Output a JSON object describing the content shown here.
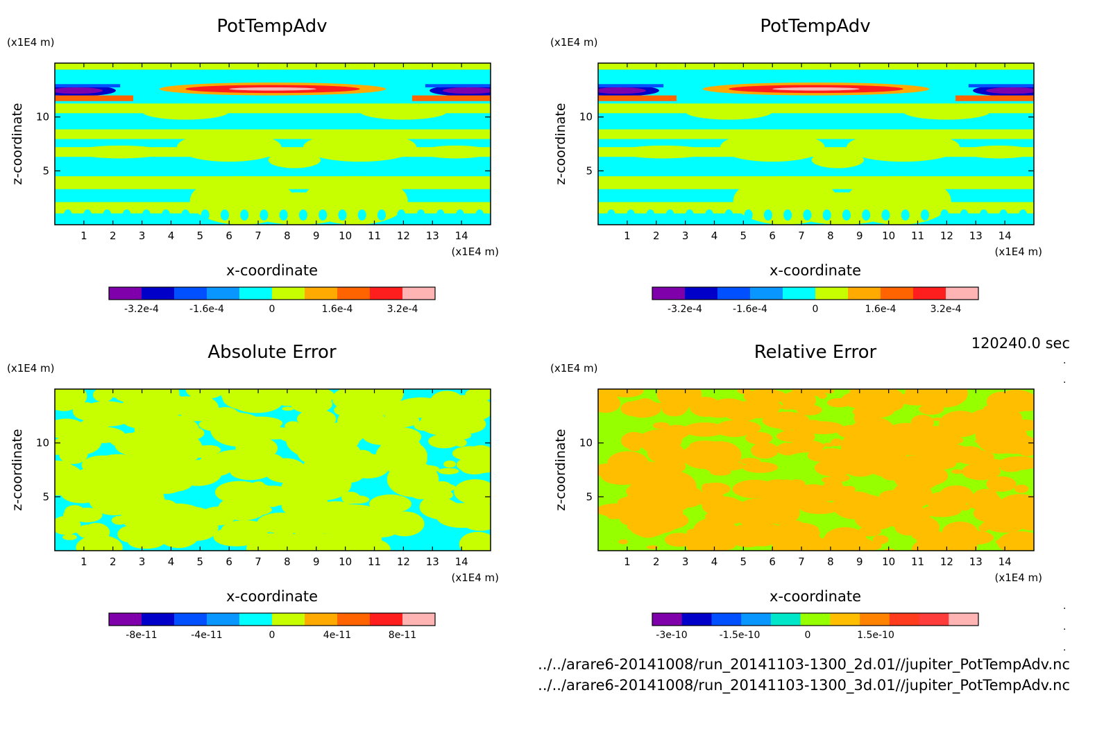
{
  "timestamp": "120240.0 sec",
  "files": [
    "../../arare6-20141008/run_20141103-1300_2d.01//jupiter_PotTempAdv.nc",
    "../../arare6-20141008/run_20141103-1300_3d.01//jupiter_PotTempAdv.nc"
  ],
  "chart_data": [
    {
      "type": "heatmap",
      "title": "PotTempAdv",
      "xlabel": "x-coordinate",
      "ylabel": "z-coordinate",
      "x_unit": "(x1E4 m)",
      "y_unit": "(x1E4 m)",
      "xlim": [
        0,
        15
      ],
      "ylim": [
        0,
        15
      ],
      "xticks": [
        "1",
        "2",
        "3",
        "4",
        "5",
        "6",
        "7",
        "8",
        "9",
        "10",
        "11",
        "12",
        "13",
        "14"
      ],
      "yticks": [
        "5",
        "10"
      ],
      "pattern": "field",
      "colorbar": {
        "colors": [
          "#7f00aa",
          "#0000c8",
          "#0050ff",
          "#0a96ff",
          "#00ffff",
          "#c8ff00",
          "#ffaa00",
          "#ff6400",
          "#ff1e1e",
          "#ffb4b4"
        ],
        "labels": [
          "-3.2e-4",
          "-1.6e-4",
          "0",
          "1.6e-4",
          "3.2e-4"
        ]
      }
    },
    {
      "type": "heatmap",
      "title": "PotTempAdv",
      "xlabel": "x-coordinate",
      "ylabel": "z-coordinate",
      "x_unit": "(x1E4 m)",
      "y_unit": "(x1E4 m)",
      "xlim": [
        0,
        15
      ],
      "ylim": [
        0,
        15
      ],
      "xticks": [
        "1",
        "2",
        "3",
        "4",
        "5",
        "6",
        "7",
        "8",
        "9",
        "10",
        "11",
        "12",
        "13",
        "14"
      ],
      "yticks": [
        "5",
        "10"
      ],
      "pattern": "field",
      "colorbar": {
        "colors": [
          "#7f00aa",
          "#0000c8",
          "#0050ff",
          "#0a96ff",
          "#00ffff",
          "#c8ff00",
          "#ffaa00",
          "#ff6400",
          "#ff1e1e",
          "#ffb4b4"
        ],
        "labels": [
          "-3.2e-4",
          "-1.6e-4",
          "0",
          "1.6e-4",
          "3.2e-4"
        ]
      }
    },
    {
      "type": "heatmap",
      "title": "Absolute Error",
      "xlabel": "x-coordinate",
      "ylabel": "z-coordinate",
      "x_unit": "(x1E4 m)",
      "y_unit": "(x1E4 m)",
      "xlim": [
        0,
        15
      ],
      "ylim": [
        0,
        15
      ],
      "xticks": [
        "1",
        "2",
        "3",
        "4",
        "5",
        "6",
        "7",
        "8",
        "9",
        "10",
        "11",
        "12",
        "13",
        "14"
      ],
      "yticks": [
        "5",
        "10"
      ],
      "pattern": "noise-cyan",
      "colorbar": {
        "colors": [
          "#7f00aa",
          "#0000c8",
          "#0050ff",
          "#0a96ff",
          "#00ffff",
          "#c8ff00",
          "#ffaa00",
          "#ff6400",
          "#ff1e1e",
          "#ffb4b4"
        ],
        "labels": [
          "-8e-11",
          "-4e-11",
          "0",
          "4e-11",
          "8e-11"
        ]
      }
    },
    {
      "type": "heatmap",
      "title": "Relative Error",
      "xlabel": "x-coordinate",
      "ylabel": "z-coordinate",
      "x_unit": "(x1E4 m)",
      "y_unit": "(x1E4 m)",
      "xlim": [
        0,
        15
      ],
      "ylim": [
        0,
        15
      ],
      "xticks": [
        "1",
        "2",
        "3",
        "4",
        "5",
        "6",
        "7",
        "8",
        "9",
        "10",
        "11",
        "12",
        "13",
        "14"
      ],
      "yticks": [
        "5",
        "10"
      ],
      "pattern": "noise-orange",
      "colorbar": {
        "colors": [
          "#7f00aa",
          "#0000c8",
          "#0050ff",
          "#0a96ff",
          "#00e6c8",
          "#96ff00",
          "#ffbe00",
          "#ff8200",
          "#ff3c1e",
          "#ff3c3c",
          "#ffb4b4"
        ],
        "labels": [
          "-3e-10",
          "-1.5e-10",
          "0",
          "1.5e-10"
        ]
      }
    }
  ]
}
